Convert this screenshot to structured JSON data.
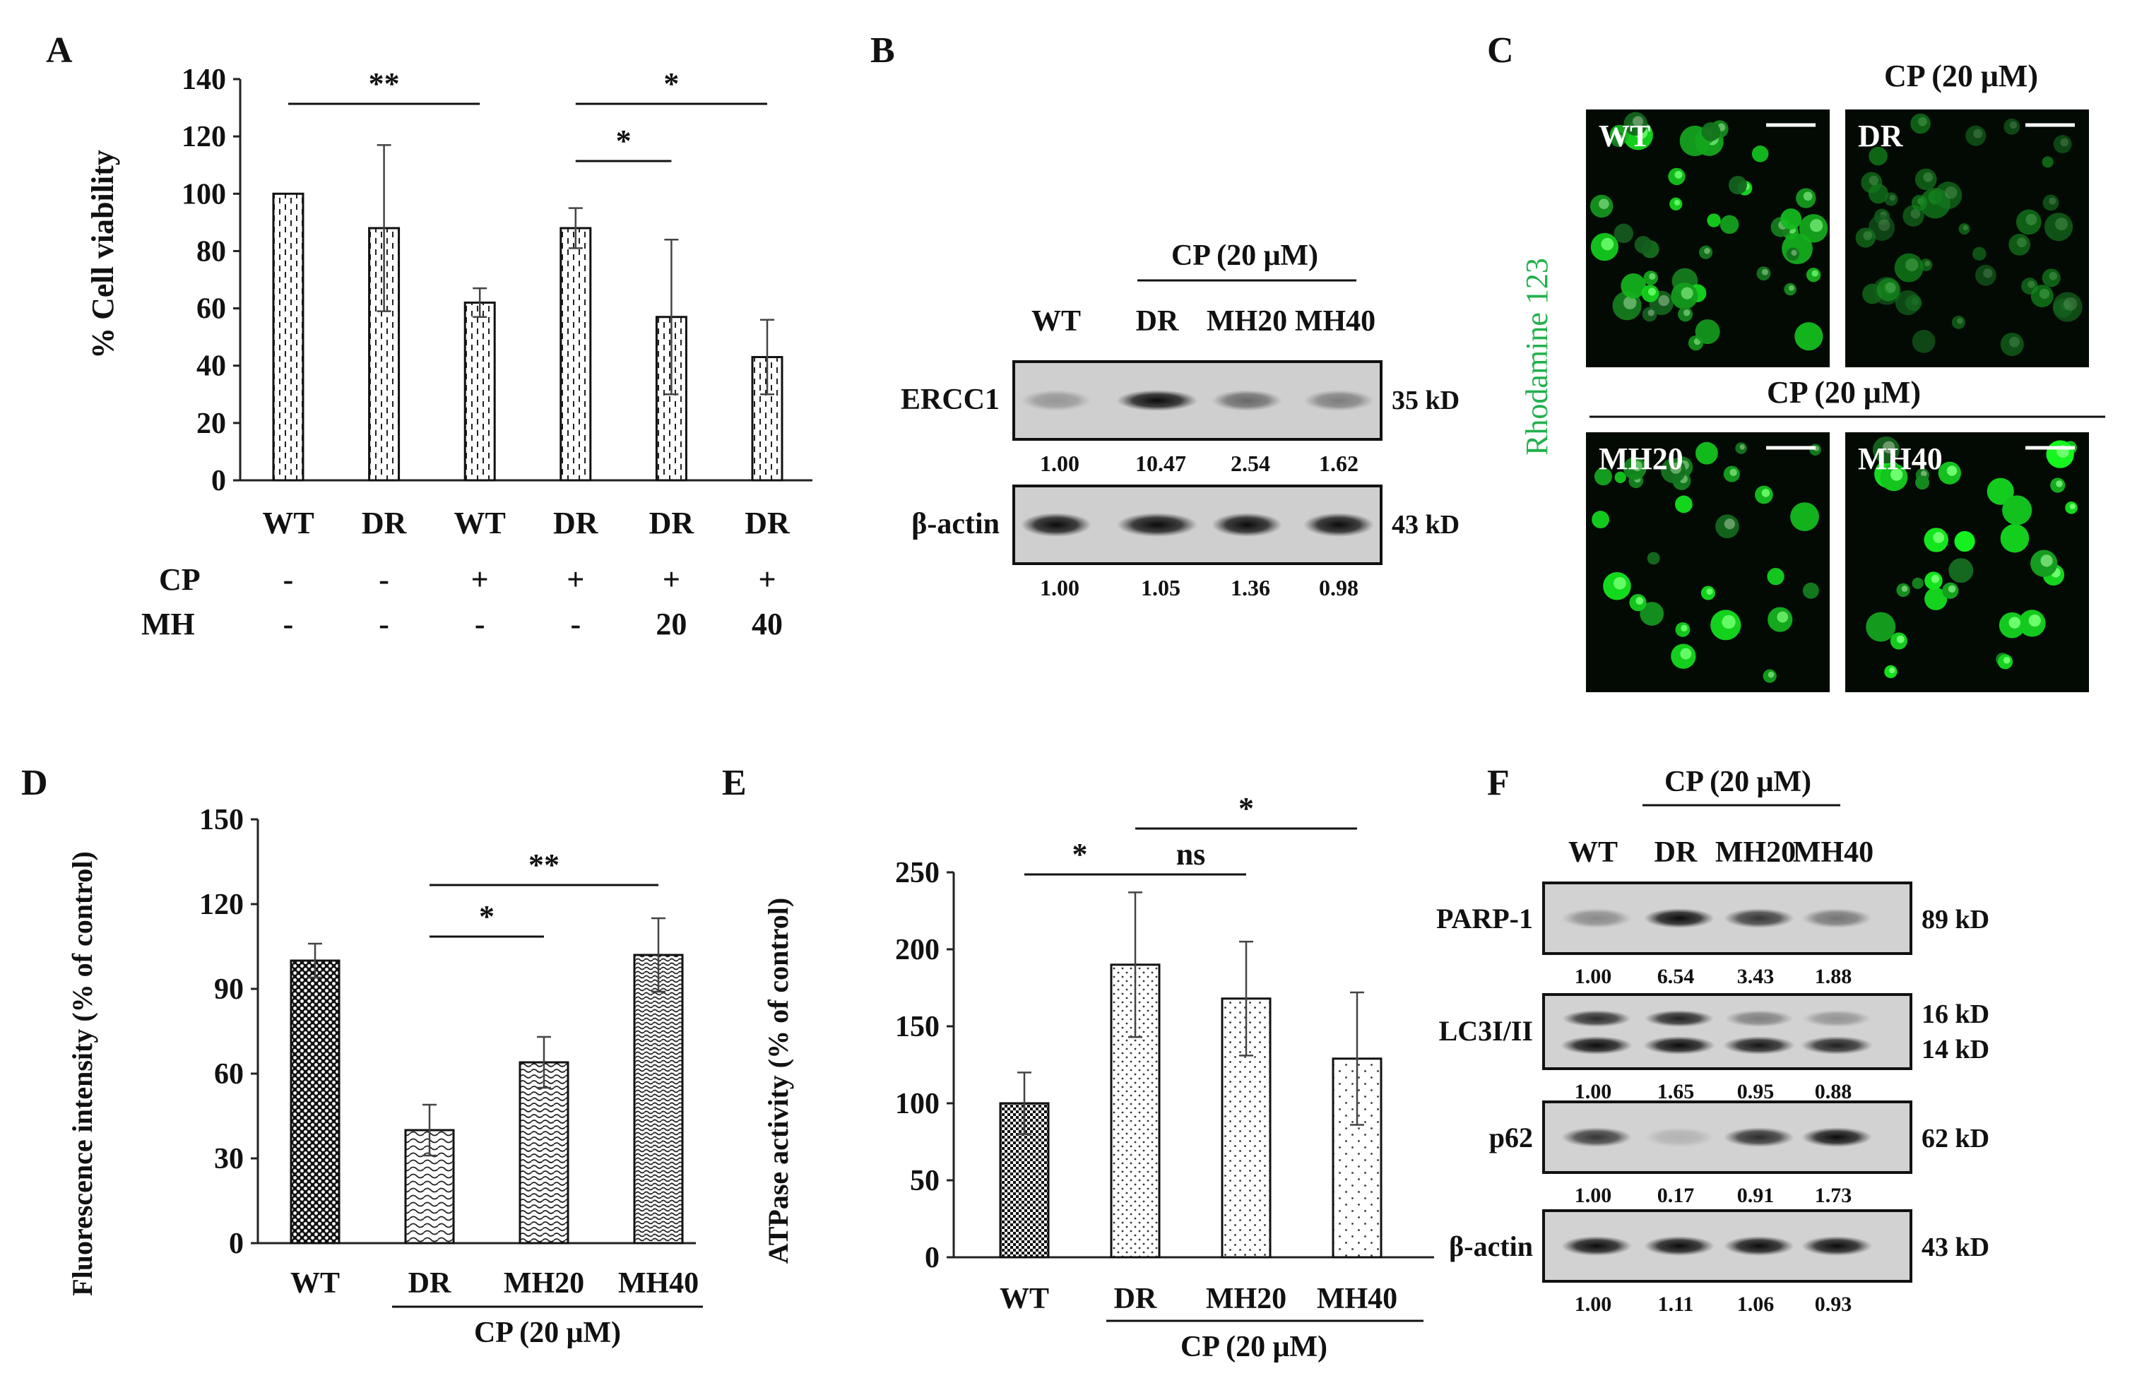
{
  "panel_letters": {
    "A": "A",
    "B": "B",
    "C": "C",
    "D": "D",
    "E": "E",
    "F": "F"
  },
  "panelA": {
    "chart_data": {
      "type": "bar",
      "ylabel": "% Cell viability",
      "ylim": [
        0,
        140
      ],
      "yticks": [
        "0",
        "20",
        "40",
        "60",
        "80",
        "100",
        "120",
        "140"
      ],
      "categories": [
        "WT",
        "DR",
        "WT",
        "DR",
        "DR",
        "DR"
      ],
      "values": [
        100,
        88,
        62,
        88,
        57,
        43
      ],
      "errors": [
        0,
        29,
        5,
        7,
        27,
        13
      ],
      "grid": false
    },
    "cp_label": "CP",
    "mh_label": "MH",
    "cp_row": [
      "-",
      "-",
      "+",
      "+",
      "+",
      "+"
    ],
    "mh_row": [
      "-",
      "-",
      "-",
      "-",
      "20",
      "40"
    ],
    "sig": [
      {
        "from": 0,
        "to": 2,
        "text": "**",
        "level": "high"
      },
      {
        "from": 3,
        "to": 5,
        "text": "*",
        "level": "high"
      },
      {
        "from": 3,
        "to": 4,
        "text": "*",
        "level": "low"
      }
    ]
  },
  "panelB": {
    "cp_header": "CP (20 μM)",
    "lanes": [
      "WT",
      "DR",
      "MH20",
      "MH40"
    ],
    "blots": [
      {
        "name": "ERCC1",
        "kd": "35 kD",
        "intensity": [
          0.28,
          0.95,
          0.5,
          0.4
        ],
        "values": [
          "1.00",
          "10.47",
          "2.54",
          "1.62"
        ]
      },
      {
        "name": "β-actin",
        "kd": "43 kD",
        "intensity": [
          0.95,
          0.95,
          0.95,
          0.95
        ],
        "values": [
          "1.00",
          "1.05",
          "1.36",
          "0.98"
        ]
      }
    ]
  },
  "panelC": {
    "stain_label": "Rhodamine 123",
    "cp_header_top": "CP (20 μM)",
    "cp_header_mid": "CP (20 μM)",
    "images": [
      {
        "label": "WT",
        "brightness": 0.85,
        "cells": 45
      },
      {
        "label": "DR",
        "brightness": 0.35,
        "cells": 40
      },
      {
        "label": "MH20",
        "brightness": 0.9,
        "cells": 28
      },
      {
        "label": "MH40",
        "brightness": 1.0,
        "cells": 30
      }
    ]
  },
  "panelD": {
    "chart_data": {
      "type": "bar",
      "ylabel": "Fluorescence intensity (% of control)",
      "ylim": [
        0,
        150
      ],
      "yticks": [
        "0",
        "30",
        "60",
        "90",
        "120",
        "150"
      ],
      "categories": [
        "WT",
        "DR",
        "MH20",
        "MH40"
      ],
      "values": [
        100,
        40,
        64,
        102
      ],
      "errors": [
        6,
        9,
        9,
        13
      ],
      "grid": false
    },
    "cp_caption": "CP (20 μM)",
    "sig": [
      {
        "from": 1,
        "to": 3,
        "text": "**",
        "level": "high"
      },
      {
        "from": 1,
        "to": 2,
        "text": "*",
        "level": "low"
      }
    ]
  },
  "panelE": {
    "chart_data": {
      "type": "bar",
      "ylabel": "ATPase activity (% of control)",
      "ylim": [
        0,
        250
      ],
      "yticks": [
        "0",
        "50",
        "100",
        "150",
        "200",
        "250"
      ],
      "categories": [
        "WT",
        "DR",
        "MH20",
        "MH40"
      ],
      "values": [
        100,
        190,
        168,
        129
      ],
      "errors": [
        20,
        47,
        37,
        43
      ],
      "grid": false
    },
    "cp_caption": "CP (20 μM)",
    "sig": [
      {
        "from": 1,
        "to": 3,
        "text": "*",
        "level": "high"
      },
      {
        "from": 0,
        "to": 1,
        "text": "*",
        "level": "low"
      },
      {
        "from": 1,
        "to": 2,
        "text": "ns",
        "level": "low"
      }
    ]
  },
  "panelF": {
    "cp_header": "CP (20 μM)",
    "lanes": [
      "WT",
      "DR",
      "MH20",
      "MH40"
    ],
    "blots": [
      {
        "name": "PARP-1",
        "kd": [
          "89 kD"
        ],
        "bands": [
          {
            "intensity": [
              0.35,
              0.95,
              0.75,
              0.45
            ]
          }
        ],
        "values": [
          "1.00",
          "6.54",
          "3.43",
          "1.88"
        ]
      },
      {
        "name": "LC3I/II",
        "kd": [
          "16 kD",
          "14 kD"
        ],
        "bands": [
          {
            "intensity": [
              0.8,
              0.85,
              0.4,
              0.3
            ]
          },
          {
            "intensity": [
              0.95,
              0.95,
              0.9,
              0.85
            ]
          }
        ],
        "values": [
          "1.00",
          "1.65",
          "0.95",
          "0.88"
        ]
      },
      {
        "name": "p62",
        "kd": [
          "62 kD"
        ],
        "bands": [
          {
            "intensity": [
              0.75,
              0.15,
              0.8,
              0.95
            ]
          }
        ],
        "values": [
          "1.00",
          "0.17",
          "0.91",
          "1.73"
        ]
      },
      {
        "name": "β-actin",
        "kd": [
          "43 kD"
        ],
        "bands": [
          {
            "intensity": [
              0.95,
              0.95,
              0.95,
              0.95
            ]
          }
        ],
        "values": [
          "1.00",
          "1.11",
          "1.06",
          "0.93"
        ]
      }
    ]
  }
}
